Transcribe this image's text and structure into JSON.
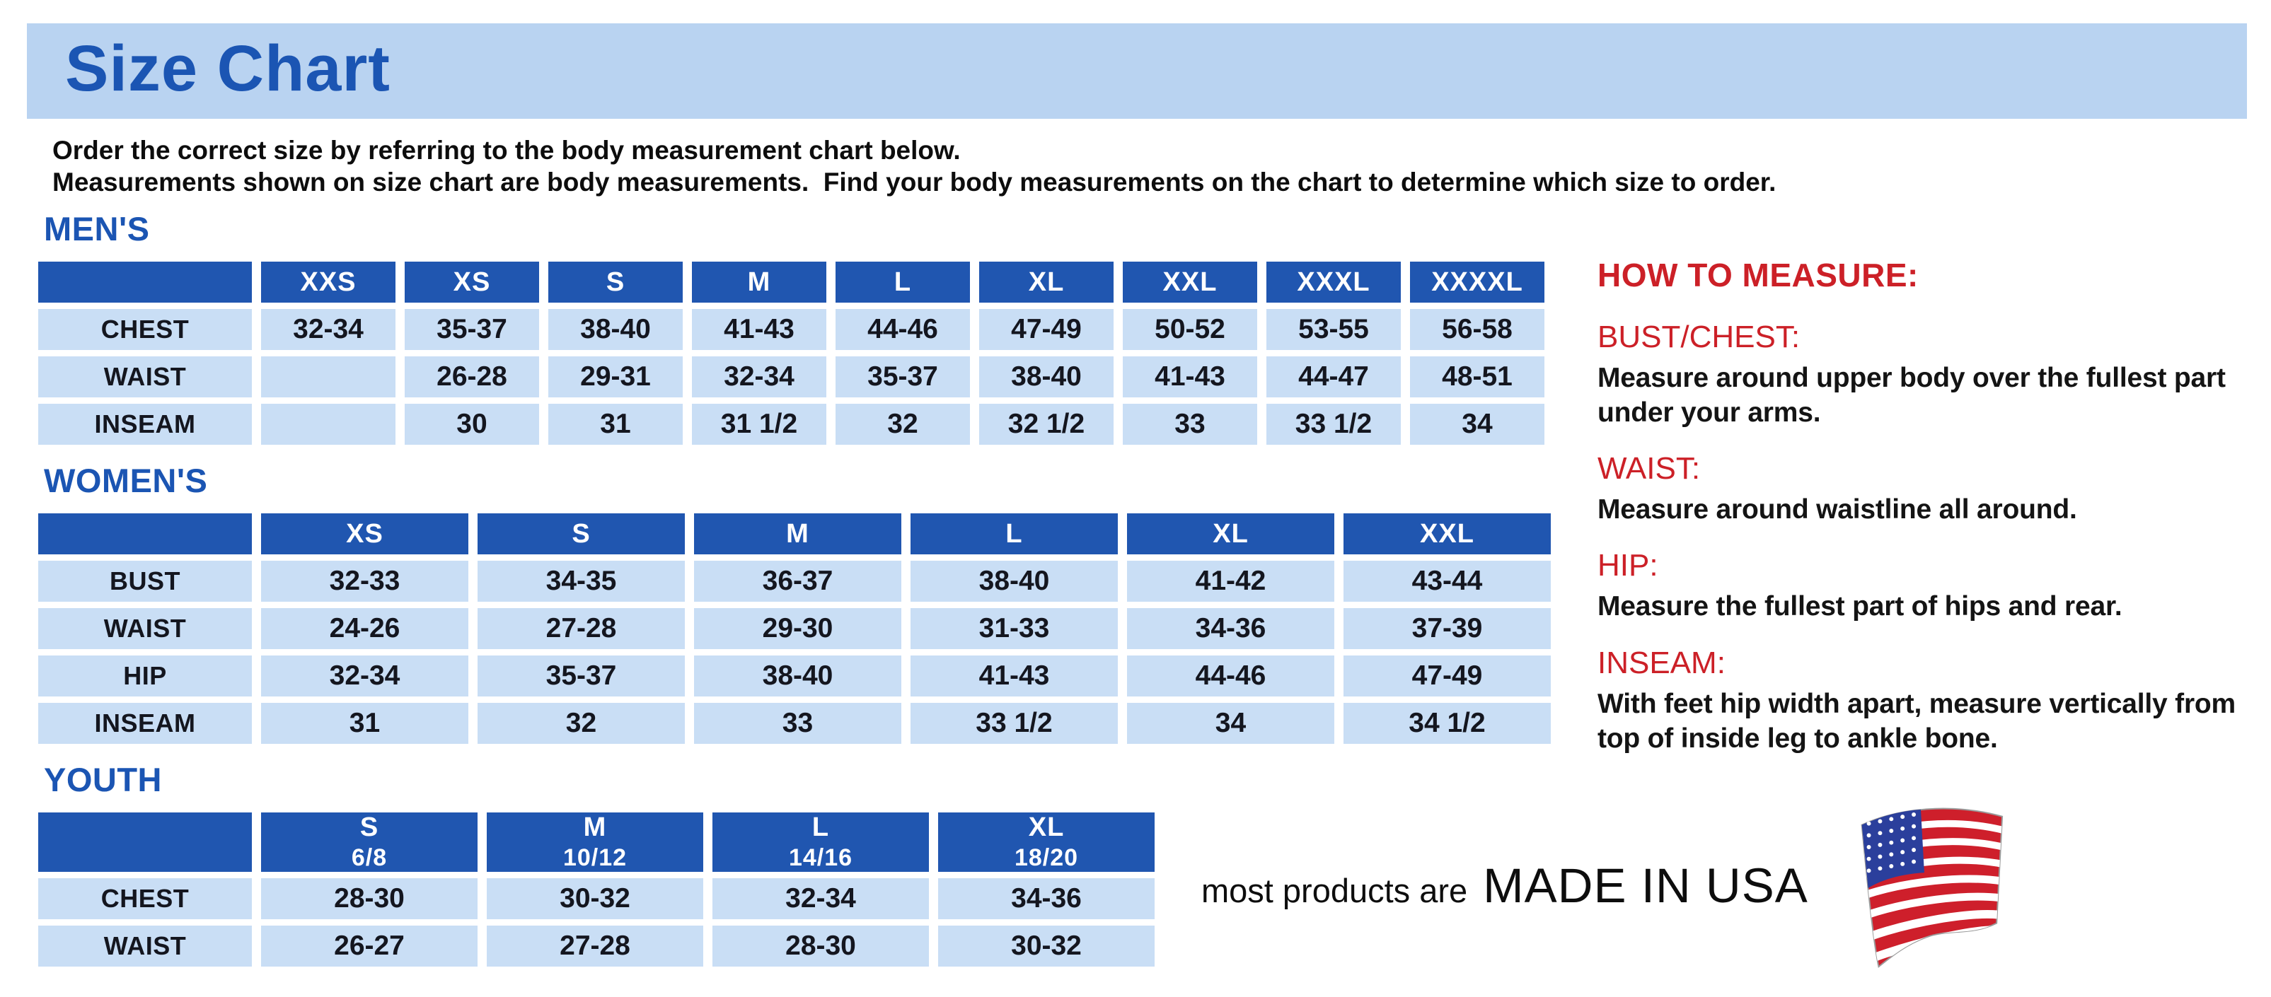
{
  "page": {
    "title": "Size Chart"
  },
  "intro": {
    "line1": "Order the correct size by referring to the body measurement chart below.",
    "line2": "Measurements shown on size chart are body measurements.  Find your body measurements on the chart to determine which size to order."
  },
  "tables": {
    "mens": {
      "heading": "MEN'S",
      "columns": [
        "XXS",
        "XS",
        "S",
        "M",
        "L",
        "XL",
        "XXL",
        "XXXL",
        "XXXXL"
      ],
      "rows": [
        {
          "label": "CHEST",
          "values": [
            "32-34",
            "35-37",
            "38-40",
            "41-43",
            "44-46",
            "47-49",
            "50-52",
            "53-55",
            "56-58"
          ]
        },
        {
          "label": "WAIST",
          "values": [
            "",
            "26-28",
            "29-31",
            "32-34",
            "35-37",
            "38-40",
            "41-43",
            "44-47",
            "48-51"
          ]
        },
        {
          "label": "INSEAM",
          "values": [
            "",
            "30",
            "31",
            "31 1/2",
            "32",
            "32 1/2",
            "33",
            "33 1/2",
            "34"
          ]
        }
      ]
    },
    "womens": {
      "heading": "WOMEN'S",
      "columns": [
        "XS",
        "S",
        "M",
        "L",
        "XL",
        "XXL"
      ],
      "rows": [
        {
          "label": "BUST",
          "values": [
            "32-33",
            "34-35",
            "36-37",
            "38-40",
            "41-42",
            "43-44"
          ]
        },
        {
          "label": "WAIST",
          "values": [
            "24-26",
            "27-28",
            "29-30",
            "31-33",
            "34-36",
            "37-39"
          ]
        },
        {
          "label": "HIP",
          "values": [
            "32-34",
            "35-37",
            "38-40",
            "41-43",
            "44-46",
            "47-49"
          ]
        },
        {
          "label": "INSEAM",
          "values": [
            "31",
            "32",
            "33",
            "33 1/2",
            "34",
            "34 1/2"
          ]
        }
      ]
    },
    "youth": {
      "heading": "YOUTH",
      "columns": [
        {
          "size": "S",
          "range": "6/8"
        },
        {
          "size": "M",
          "range": "10/12"
        },
        {
          "size": "L",
          "range": "14/16"
        },
        {
          "size": "XL",
          "range": "18/20"
        }
      ],
      "rows": [
        {
          "label": "CHEST",
          "values": [
            "28-30",
            "30-32",
            "32-34",
            "34-36"
          ]
        },
        {
          "label": "WAIST",
          "values": [
            "26-27",
            "27-28",
            "28-30",
            "30-32"
          ]
        }
      ]
    }
  },
  "how_to_measure": {
    "heading": "HOW TO MEASURE:",
    "items": [
      {
        "term": "BUST/CHEST:",
        "description": "Measure around upper body over the fullest part under your arms."
      },
      {
        "term": "WAIST:",
        "description": "Measure around waistline all around."
      },
      {
        "term": "HIP:",
        "description": "Measure the fullest part of hips and rear."
      },
      {
        "term": "INSEAM:",
        "description": "With feet hip width apart, measure vertically from top of inside leg to ankle bone."
      }
    ]
  },
  "footer": {
    "prefix": "most products are",
    "emphasis": "MADE IN USA",
    "flag_icon": "usa-flag-icon"
  },
  "colors": {
    "brand_blue": "#1b55b3",
    "header_blue": "#2056b0",
    "cell_blue": "#c9def5",
    "banner_blue": "#b9d3f1",
    "accent_red": "#cc2027",
    "flag_red": "#ce1f2b",
    "flag_blue": "#2b3f9c"
  }
}
